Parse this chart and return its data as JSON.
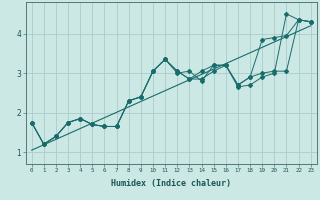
{
  "xlabel": "Humidex (Indice chaleur)",
  "ylabel": "",
  "background_color": "#cce8e4",
  "grid_color": "#aaccca",
  "line_color": "#1a6b6b",
  "xlim": [
    -0.5,
    23.5
  ],
  "ylim": [
    0.7,
    4.8
  ],
  "xticks": [
    0,
    1,
    2,
    3,
    4,
    5,
    6,
    7,
    8,
    9,
    10,
    11,
    12,
    13,
    14,
    15,
    16,
    17,
    18,
    19,
    20,
    21,
    22,
    23
  ],
  "yticks": [
    1,
    2,
    3,
    4
  ],
  "series": [
    [
      1.75,
      1.2,
      1.4,
      1.75,
      1.85,
      1.7,
      1.65,
      1.65,
      2.3,
      2.4,
      3.05,
      3.35,
      3.0,
      3.05,
      2.8,
      3.2,
      3.2,
      2.65,
      2.7,
      2.9,
      3.0,
      4.5,
      4.35,
      4.3
    ],
    [
      1.75,
      1.2,
      1.4,
      1.75,
      1.85,
      1.7,
      1.65,
      1.65,
      2.3,
      2.4,
      3.05,
      3.35,
      3.05,
      2.85,
      3.05,
      3.2,
      3.2,
      2.7,
      2.9,
      3.85,
      3.9,
      3.95,
      4.35,
      4.3
    ],
    [
      1.75,
      1.2,
      1.4,
      1.75,
      1.85,
      1.7,
      1.65,
      1.65,
      2.3,
      2.4,
      3.05,
      3.35,
      3.05,
      2.85,
      2.85,
      3.05,
      3.2,
      2.7,
      2.9,
      3.0,
      3.05,
      3.05,
      4.35,
      4.3
    ]
  ],
  "regression_line": [
    [
      0,
      1.05
    ],
    [
      23,
      4.2
    ]
  ]
}
